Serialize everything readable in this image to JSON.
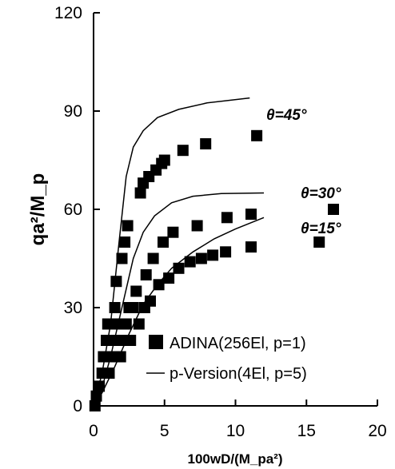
{
  "chart_data": {
    "type": "scatter",
    "title": "",
    "xlabel": "100wD/(M_pa²)",
    "ylabel": "qa²/M_p",
    "xlim": [
      0,
      20
    ],
    "ylim": [
      0,
      120
    ],
    "xticks": [
      "0",
      "5",
      "10",
      "15",
      "20"
    ],
    "yticks": [
      "0",
      "30",
      "60",
      "90",
      "120"
    ],
    "grid": false,
    "legend": {
      "position": "bottom-right",
      "items": [
        {
          "label": "ADINA(256El, p=1)",
          "marker": "square"
        },
        {
          "label": "p-Version(4El, p=5)",
          "marker": "line"
        }
      ]
    },
    "annotations": [
      "θ=45°",
      "θ=30°",
      "θ=15°"
    ],
    "series": [
      {
        "name": "ADINA(256El, p=1)",
        "kind": "scatter",
        "marker": "square",
        "points": [
          [
            0.1,
            0
          ],
          [
            0.2,
            3
          ],
          [
            0.4,
            6
          ],
          [
            0.6,
            10
          ],
          [
            0.7,
            15
          ],
          [
            0.9,
            20
          ],
          [
            1.0,
            25
          ],
          [
            1.1,
            10
          ],
          [
            1.2,
            15
          ],
          [
            1.3,
            20
          ],
          [
            1.4,
            25
          ],
          [
            1.5,
            30
          ],
          [
            1.6,
            38
          ],
          [
            1.7,
            20
          ],
          [
            1.8,
            25
          ],
          [
            1.9,
            15
          ],
          [
            2.0,
            45
          ],
          [
            2.1,
            20
          ],
          [
            2.2,
            50
          ],
          [
            2.3,
            25
          ],
          [
            2.4,
            55
          ],
          [
            2.5,
            30
          ],
          [
            2.6,
            20
          ],
          [
            2.8,
            30
          ],
          [
            3.0,
            35
          ],
          [
            3.2,
            25
          ],
          [
            3.3,
            65
          ],
          [
            3.5,
            68
          ],
          [
            3.6,
            30
          ],
          [
            3.7,
            40
          ],
          [
            3.9,
            70
          ],
          [
            4.0,
            32
          ],
          [
            4.2,
            45
          ],
          [
            4.4,
            72
          ],
          [
            4.6,
            37
          ],
          [
            4.8,
            74
          ],
          [
            4.9,
            50
          ],
          [
            5.0,
            75
          ],
          [
            5.3,
            39
          ],
          [
            5.6,
            53
          ],
          [
            6.0,
            42
          ],
          [
            6.3,
            78
          ],
          [
            6.8,
            44
          ],
          [
            7.3,
            55
          ],
          [
            7.6,
            45
          ],
          [
            7.9,
            80
          ],
          [
            8.4,
            46
          ],
          [
            9.3,
            47
          ],
          [
            9.4,
            57.5
          ],
          [
            11.1,
            48.5
          ],
          [
            11.1,
            58.5
          ],
          [
            11.5,
            82.5
          ],
          [
            15.9,
            50
          ],
          [
            16.9,
            60
          ]
        ]
      },
      {
        "name": "θ=45°",
        "kind": "line",
        "points": [
          [
            0,
            0
          ],
          [
            0.6,
            10
          ],
          [
            1.2,
            25
          ],
          [
            1.8,
            50
          ],
          [
            2.3,
            70
          ],
          [
            2.8,
            79
          ],
          [
            3.5,
            84
          ],
          [
            4.5,
            88
          ],
          [
            6.0,
            90.5
          ],
          [
            8.0,
            92.5
          ],
          [
            11.0,
            94
          ]
        ]
      },
      {
        "name": "θ=30°",
        "kind": "line",
        "points": [
          [
            0,
            0
          ],
          [
            0.5,
            4
          ],
          [
            1.2,
            15
          ],
          [
            2.0,
            30
          ],
          [
            2.8,
            45
          ],
          [
            3.5,
            53
          ],
          [
            4.3,
            58
          ],
          [
            5.5,
            62
          ],
          [
            7.0,
            64
          ],
          [
            9.0,
            64.8
          ],
          [
            12.0,
            65
          ]
        ]
      },
      {
        "name": "θ=15°",
        "kind": "line",
        "points": [
          [
            0,
            0
          ],
          [
            0.6,
            4
          ],
          [
            1.5,
            12
          ],
          [
            2.5,
            22
          ],
          [
            3.5,
            31
          ],
          [
            4.5,
            37
          ],
          [
            5.5,
            42
          ],
          [
            7.0,
            47
          ],
          [
            8.5,
            51
          ],
          [
            10.0,
            54
          ],
          [
            12.0,
            57.5
          ]
        ]
      }
    ]
  }
}
